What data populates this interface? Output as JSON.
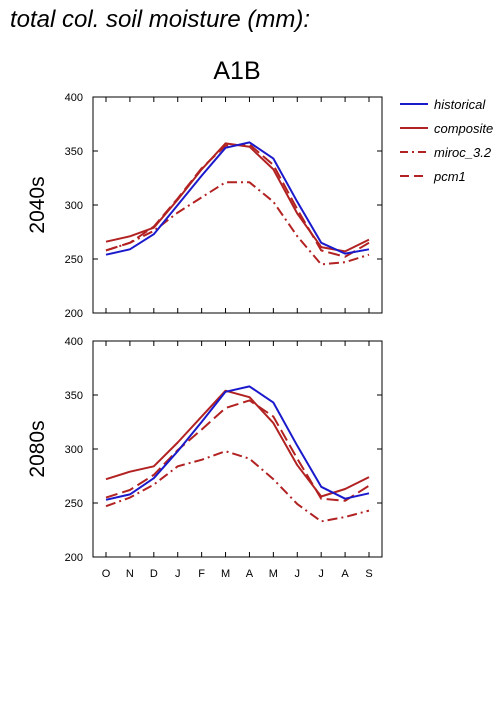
{
  "page": {
    "title": "total col. soil moisture (mm):",
    "scenario": "A1B"
  },
  "chart_data": {
    "type": "line",
    "categories": [
      "O",
      "N",
      "D",
      "J",
      "F",
      "M",
      "A",
      "M",
      "J",
      "J",
      "A",
      "S"
    ],
    "ylim": [
      200,
      400
    ],
    "yticks": [
      200,
      250,
      300,
      350,
      400
    ],
    "legend_position": "right",
    "series_styles": [
      {
        "name": "historical",
        "color": "#1a1acc",
        "dash": "solid"
      },
      {
        "name": "composite",
        "color": "#b22222",
        "dash": "solid"
      },
      {
        "name": "miroc_3.2",
        "color": "#b22222",
        "dash": "dashdot"
      },
      {
        "name": "pcm1",
        "color": "#b22222",
        "dash": "dash"
      }
    ],
    "panels": [
      {
        "label": "2040s",
        "series": [
          {
            "name": "historical",
            "values": [
              254,
              259,
              273,
              300,
              327,
              353,
              358,
              343,
              303,
              265,
              255,
              259
            ]
          },
          {
            "name": "composite",
            "values": [
              266,
              271,
              279,
              305,
              333,
              357,
              354,
              333,
              292,
              261,
              257,
              268
            ]
          },
          {
            "name": "miroc_3.2",
            "values": [
              258,
              265,
              276,
              293,
              307,
              321,
              321,
              303,
              271,
              245,
              247,
              254
            ]
          },
          {
            "name": "pcm1",
            "values": [
              258,
              265,
              280,
              306,
              334,
              355,
              356,
              337,
              296,
              258,
              252,
              265
            ]
          }
        ]
      },
      {
        "label": "2080s",
        "series": [
          {
            "name": "historical",
            "values": [
              253,
              258,
              273,
              298,
              325,
              353,
              358,
              343,
              303,
              265,
              254,
              259
            ]
          },
          {
            "name": "composite",
            "values": [
              272,
              279,
              284,
              306,
              330,
              354,
              348,
              324,
              285,
              256,
              263,
              274
            ]
          },
          {
            "name": "miroc_3.2",
            "values": [
              247,
              255,
              267,
              284,
              290,
              298,
              291,
              272,
              249,
              233,
              237,
              243
            ]
          },
          {
            "name": "pcm1",
            "values": [
              255,
              262,
              276,
              299,
              318,
              338,
              345,
              330,
              291,
              254,
              252,
              266
            ]
          }
        ]
      }
    ]
  }
}
